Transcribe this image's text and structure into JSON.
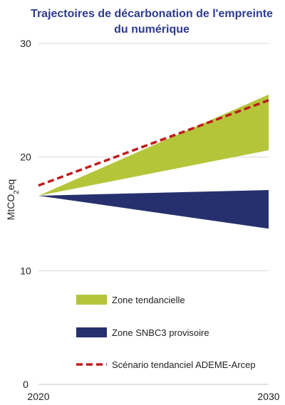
{
  "chart_data": {
    "type": "area",
    "title_lines": [
      "Trajectoires de décarbonation de l'empreinte",
      "du numérique"
    ],
    "ylabel": "MtCO2eq",
    "x": [
      2020,
      2030
    ],
    "x_tick_labels": [
      "2020",
      "2030"
    ],
    "ylim": [
      0,
      30
    ],
    "y_ticks": [
      0,
      10,
      20,
      30
    ],
    "grid": true,
    "legend_placement": "bottom-center, inside plot",
    "series": [
      {
        "name": "Zone tendancielle",
        "kind": "band",
        "color": "#b5c53a",
        "lower": [
          16.6,
          20.6
        ],
        "upper": [
          16.6,
          25.5
        ]
      },
      {
        "name": "Zone SNBC3 provisoire",
        "kind": "band",
        "color": "#27306e",
        "lower": [
          16.6,
          13.7
        ],
        "upper": [
          16.6,
          17.1
        ]
      },
      {
        "name": "Scénario tendanciel ADEME-Arcep",
        "kind": "line",
        "style": "dashed",
        "color": "#c01b1b",
        "values": [
          17.5,
          25.0
        ]
      }
    ]
  }
}
